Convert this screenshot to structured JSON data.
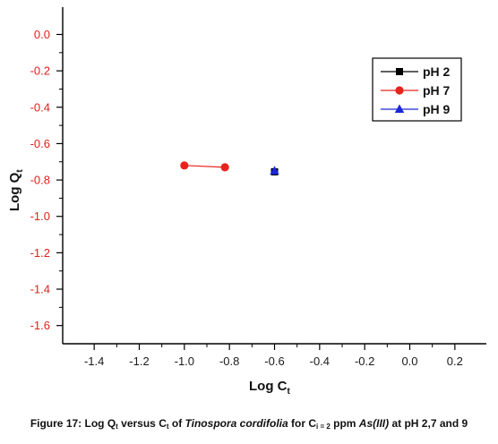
{
  "chart_data": {
    "type": "scatter",
    "title": "",
    "xlabel": "Log C",
    "xlabel_sub": "t",
    "ylabel": "Log Q",
    "ylabel_sub": "t",
    "xlim": [
      -1.5,
      0.3
    ],
    "ylim": [
      -1.7,
      0.15
    ],
    "xticks": [
      -1.4,
      -1.2,
      -1.0,
      -0.8,
      -0.6,
      -0.4,
      -0.2,
      0.0,
      0.2
    ],
    "xtick_labels": [
      "-1.4",
      "-1.2",
      "-1.0",
      "-0.8",
      "-0.6",
      "-0.4",
      "-0.2",
      "0.0",
      "0.2"
    ],
    "yticks": [
      0.0,
      -0.2,
      -0.4,
      -0.6,
      -0.8,
      -1.0,
      -1.2,
      -1.4,
      -1.6
    ],
    "ytick_labels": [
      "0.0",
      "-0.2",
      "-0.4",
      "-0.6",
      "-0.8",
      "-1.0",
      "-1.2",
      "-1.4",
      "-1.6"
    ],
    "grid": false,
    "legend_position": "top-right",
    "series": [
      {
        "name": "pH 2",
        "marker": "square",
        "color": "#000000",
        "points": [
          {
            "x": -0.6,
            "y": -0.755
          }
        ]
      },
      {
        "name": "pH 7",
        "marker": "circle",
        "color": "#e8231d",
        "points": [
          {
            "x": -1.0,
            "y": -0.72
          },
          {
            "x": -0.82,
            "y": -0.73
          }
        ]
      },
      {
        "name": "pH 9",
        "marker": "triangle",
        "color": "#1b27d8",
        "points": [
          {
            "x": -0.6,
            "y": -0.75
          }
        ]
      }
    ]
  },
  "caption": {
    "prefix": "Figure 17: Log Q",
    "sub1": "t",
    "mid1": " versus C",
    "sub2": "t",
    "mid2": " of ",
    "species": "Tinospora cordifolia",
    "mid3": " for C",
    "sub3": "i = 2",
    "mid4": " ppm ",
    "analyte": "As(III)",
    "suffix": " at pH 2,7 and 9"
  }
}
